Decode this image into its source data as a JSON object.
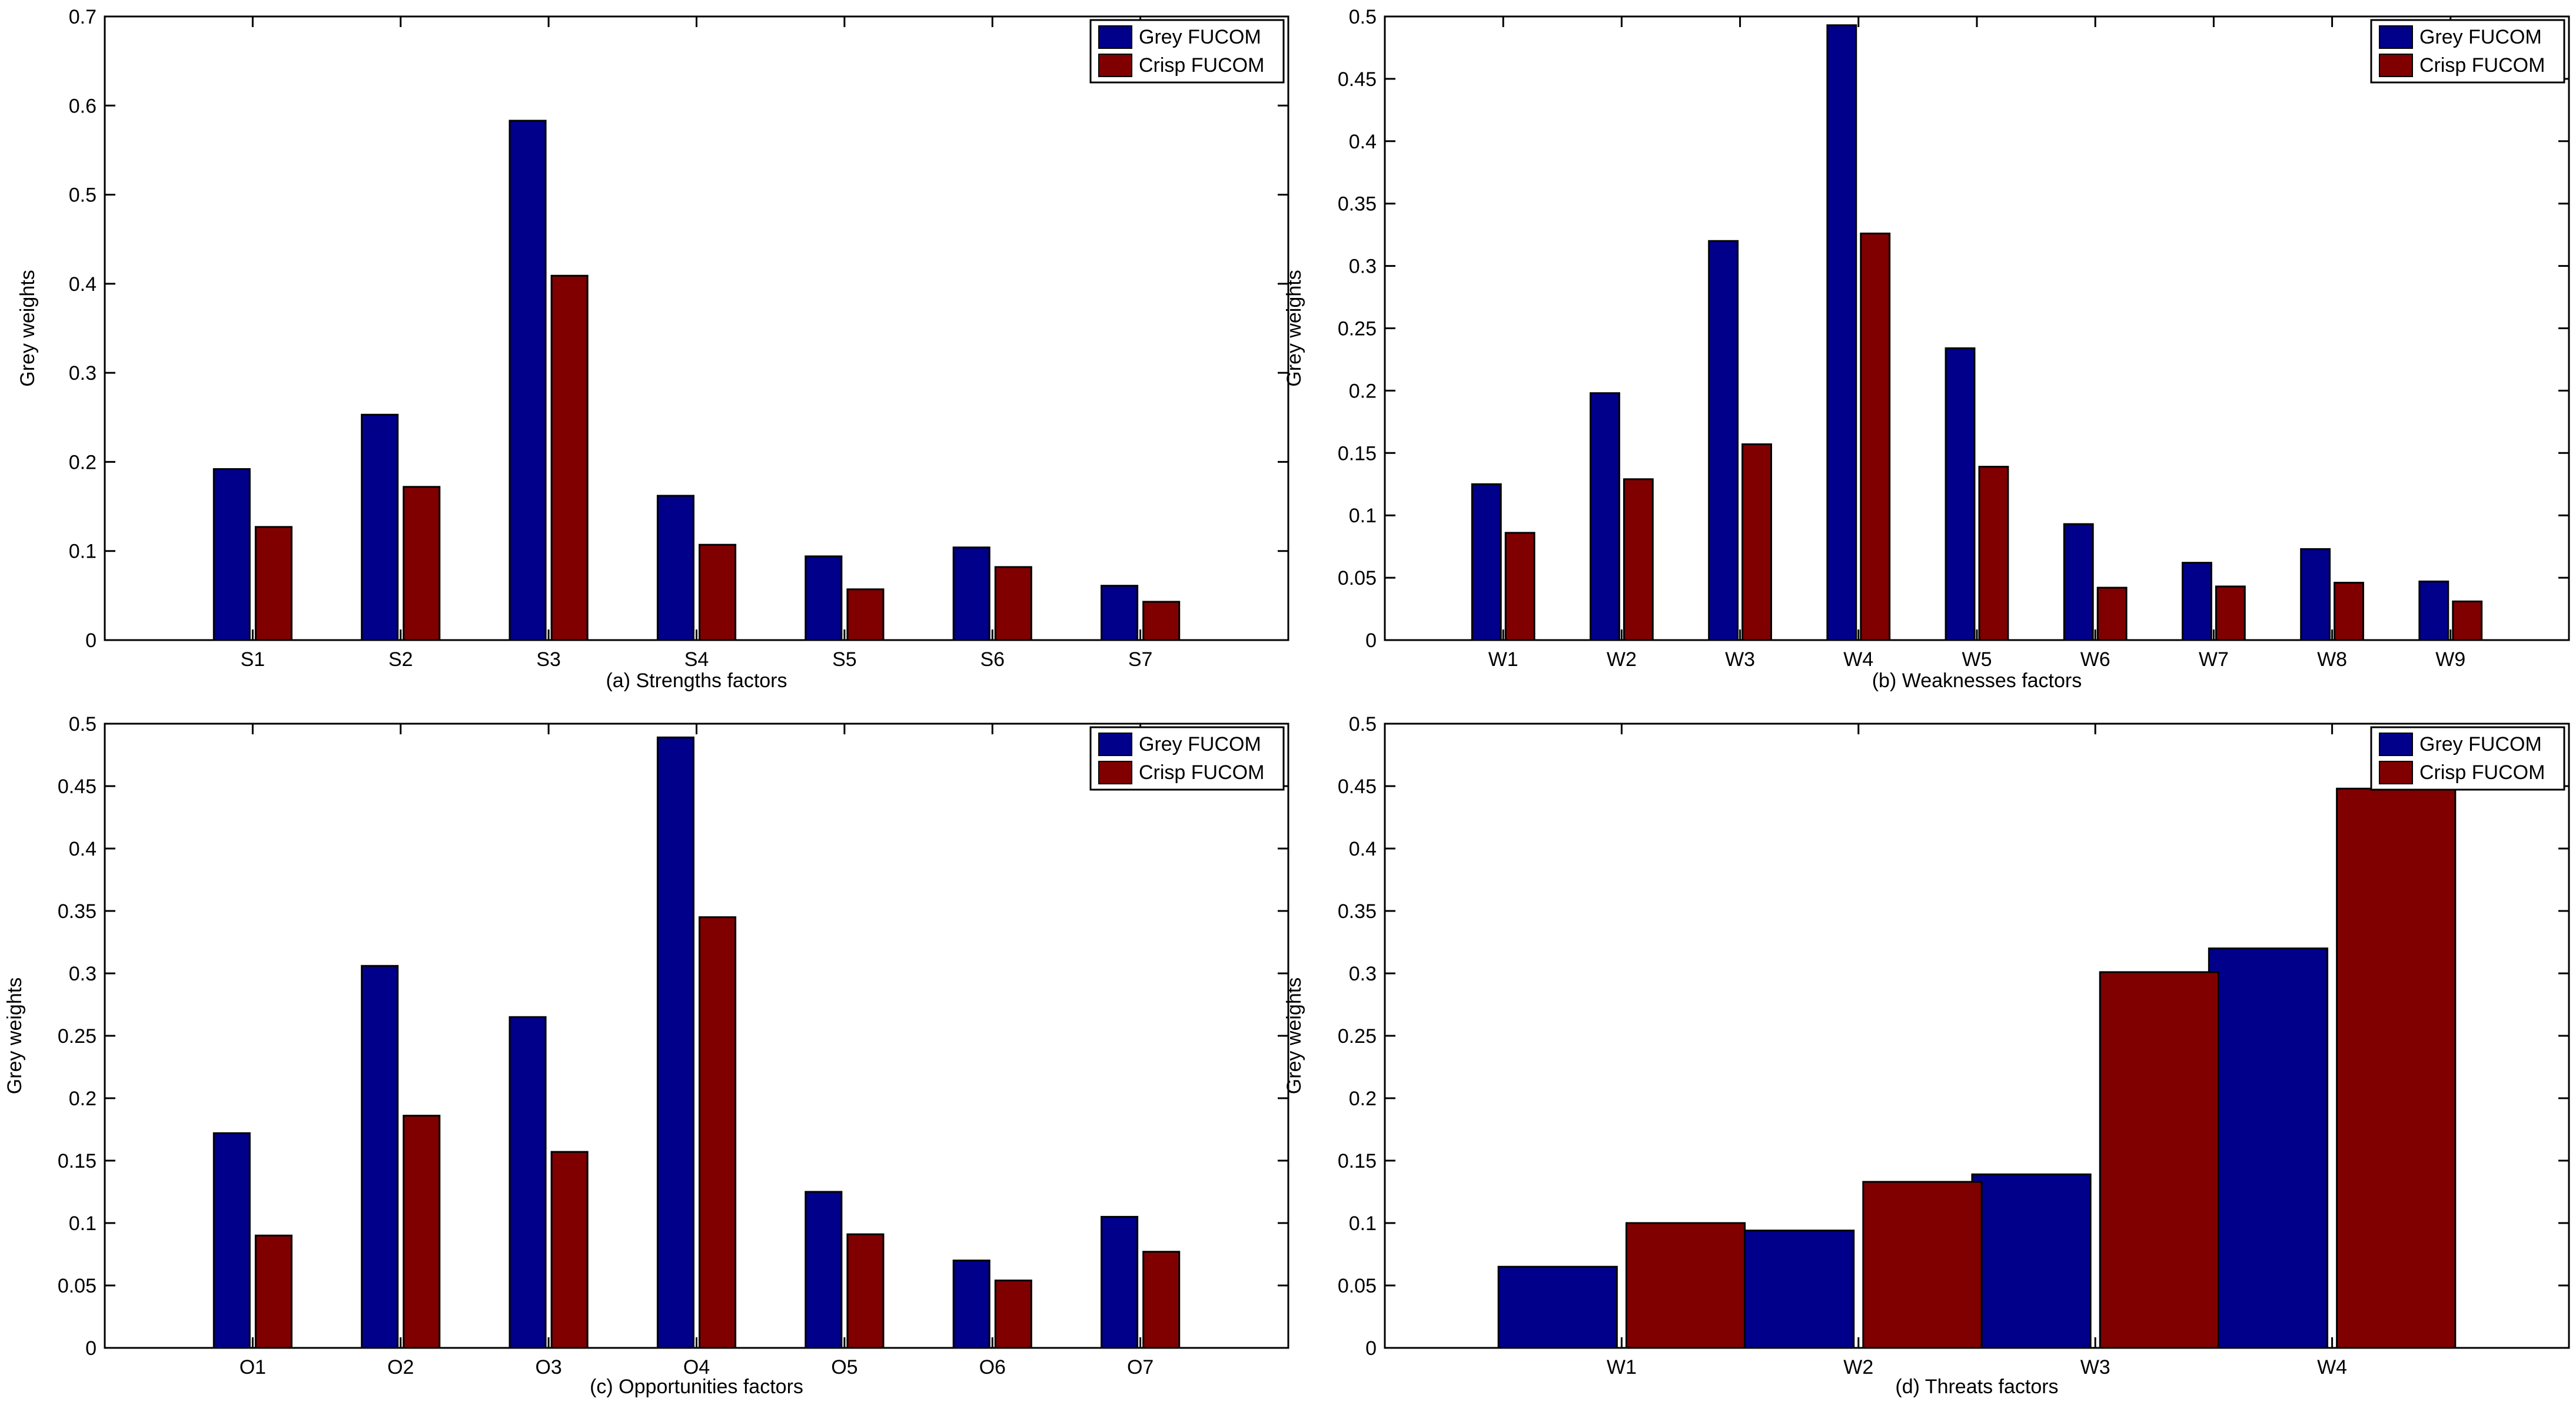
{
  "chart_data": [
    {
      "type": "bar",
      "title": "",
      "xlabel": "(a) Strengths factors",
      "ylabel": "Grey weights",
      "categories": [
        "S1",
        "S2",
        "S3",
        "S4",
        "S5",
        "S6",
        "S7"
      ],
      "ylim": [
        0,
        0.7
      ],
      "yticks": [
        0,
        0.1,
        0.2,
        0.3,
        0.4,
        0.5,
        0.6,
        0.7
      ],
      "ytick_labels": [
        "0",
        "0.1",
        "0.2",
        "0.3",
        "0.4",
        "0.5",
        "0.6",
        "0.7"
      ],
      "legend_position": "top-right",
      "series": [
        {
          "name": "Grey FUCOM",
          "color": "#00008b",
          "values": [
            0.192,
            0.253,
            0.583,
            0.162,
            0.094,
            0.104,
            0.061
          ]
        },
        {
          "name": "Crisp FUCOM",
          "color": "#800000",
          "values": [
            0.127,
            0.172,
            0.409,
            0.107,
            0.057,
            0.082,
            0.043
          ]
        }
      ]
    },
    {
      "type": "bar",
      "title": "",
      "xlabel": "(b) Weaknesses factors",
      "ylabel": "Grey weights",
      "categories": [
        "W1",
        "W2",
        "W3",
        "W4",
        "W5",
        "W6",
        "W7",
        "W8",
        "W9"
      ],
      "ylim": [
        0,
        0.5
      ],
      "yticks": [
        0,
        0.05,
        0.1,
        0.15,
        0.2,
        0.25,
        0.3,
        0.35,
        0.4,
        0.45,
        0.5
      ],
      "ytick_labels": [
        "0",
        "0.05",
        "0.1",
        "0.15",
        "0.2",
        "0.25",
        "0.3",
        "0.35",
        "0.4",
        "0.45",
        "0.5"
      ],
      "legend_position": "top-right",
      "series": [
        {
          "name": "Grey FUCOM",
          "color": "#00008b",
          "values": [
            0.125,
            0.198,
            0.32,
            0.493,
            0.234,
            0.093,
            0.062,
            0.073,
            0.047
          ]
        },
        {
          "name": "Crisp FUCOM",
          "color": "#800000",
          "values": [
            0.086,
            0.129,
            0.157,
            0.326,
            0.139,
            0.042,
            0.043,
            0.046,
            0.031
          ]
        }
      ]
    },
    {
      "type": "bar",
      "title": "",
      "xlabel": "(c) Opportunities factors",
      "ylabel": "Grey weights",
      "categories": [
        "O1",
        "O2",
        "O3",
        "O4",
        "O5",
        "O6",
        "O7"
      ],
      "ylim": [
        0,
        0.5
      ],
      "yticks": [
        0,
        0.05,
        0.1,
        0.15,
        0.2,
        0.25,
        0.3,
        0.35,
        0.4,
        0.45,
        0.5
      ],
      "ytick_labels": [
        "0",
        "0.05",
        "0.1",
        "0.15",
        "0.2",
        "0.25",
        "0.3",
        "0.35",
        "0.4",
        "0.45",
        "0.5"
      ],
      "legend_position": "top-right",
      "series": [
        {
          "name": "Grey FUCOM",
          "color": "#00008b",
          "values": [
            0.172,
            0.306,
            0.265,
            0.489,
            0.125,
            0.07,
            0.105
          ]
        },
        {
          "name": "Crisp FUCOM",
          "color": "#800000",
          "values": [
            0.09,
            0.186,
            0.157,
            0.345,
            0.091,
            0.054,
            0.077
          ]
        }
      ]
    },
    {
      "type": "bar",
      "title": "",
      "xlabel": "(d) Threats factors",
      "ylabel": "Grey weights",
      "categories": [
        "W1",
        "W2",
        "W3",
        "W4"
      ],
      "ylim": [
        0,
        0.5
      ],
      "yticks": [
        0,
        0.05,
        0.1,
        0.15,
        0.2,
        0.25,
        0.3,
        0.35,
        0.4,
        0.45,
        0.5
      ],
      "ytick_labels": [
        "0",
        "0.05",
        "0.1",
        "0.15",
        "0.2",
        "0.25",
        "0.3",
        "0.35",
        "0.4",
        "0.45",
        "0.5"
      ],
      "legend_position": "top-right",
      "series": [
        {
          "name": "Grey FUCOM",
          "color": "#00008b",
          "values": [
            0.065,
            0.094,
            0.139,
            0.32
          ]
        },
        {
          "name": "Crisp FUCOM",
          "color": "#800000",
          "values": [
            0.1,
            0.133,
            0.301,
            0.448
          ]
        }
      ]
    }
  ]
}
